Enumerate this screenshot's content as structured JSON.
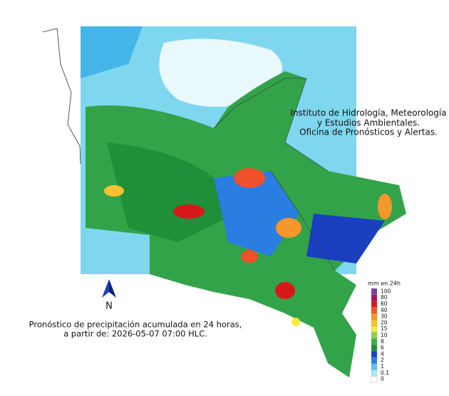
{
  "header": {
    "lines": [
      "Instituto de Hidrología, Meteorología",
      "y Estudios Ambientales.",
      "Oficina de Pronósticos y Alertas."
    ]
  },
  "caption": {
    "lines": [
      "Pronóstico de precipitación acumulada en 24 horas,",
      "a partir de: 2026-05-07 07:00 HLC."
    ]
  },
  "north": "N",
  "legend": {
    "title": "mm en 24h",
    "items": [
      {
        "label": "100",
        "color": "#7b3f9e"
      },
      {
        "label": "80",
        "color": "#a0195a"
      },
      {
        "label": "60",
        "color": "#d7191c"
      },
      {
        "label": "40",
        "color": "#f0502a"
      },
      {
        "label": "30",
        "color": "#f7962b"
      },
      {
        "label": "20",
        "color": "#f9c22e"
      },
      {
        "label": "15",
        "color": "#f7ec3b"
      },
      {
        "label": "10",
        "color": "#8fd14f"
      },
      {
        "label": "8",
        "color": "#36b34a"
      },
      {
        "label": "6",
        "color": "#1f8f3a"
      },
      {
        "label": "4",
        "color": "#1a3fbf"
      },
      {
        "label": "2",
        "color": "#2a7de1"
      },
      {
        "label": "1",
        "color": "#5bc2f2"
      },
      {
        "label": "0.1",
        "color": "#a8ecf2"
      },
      {
        "label": "0",
        "color": "#ffffff"
      }
    ]
  }
}
